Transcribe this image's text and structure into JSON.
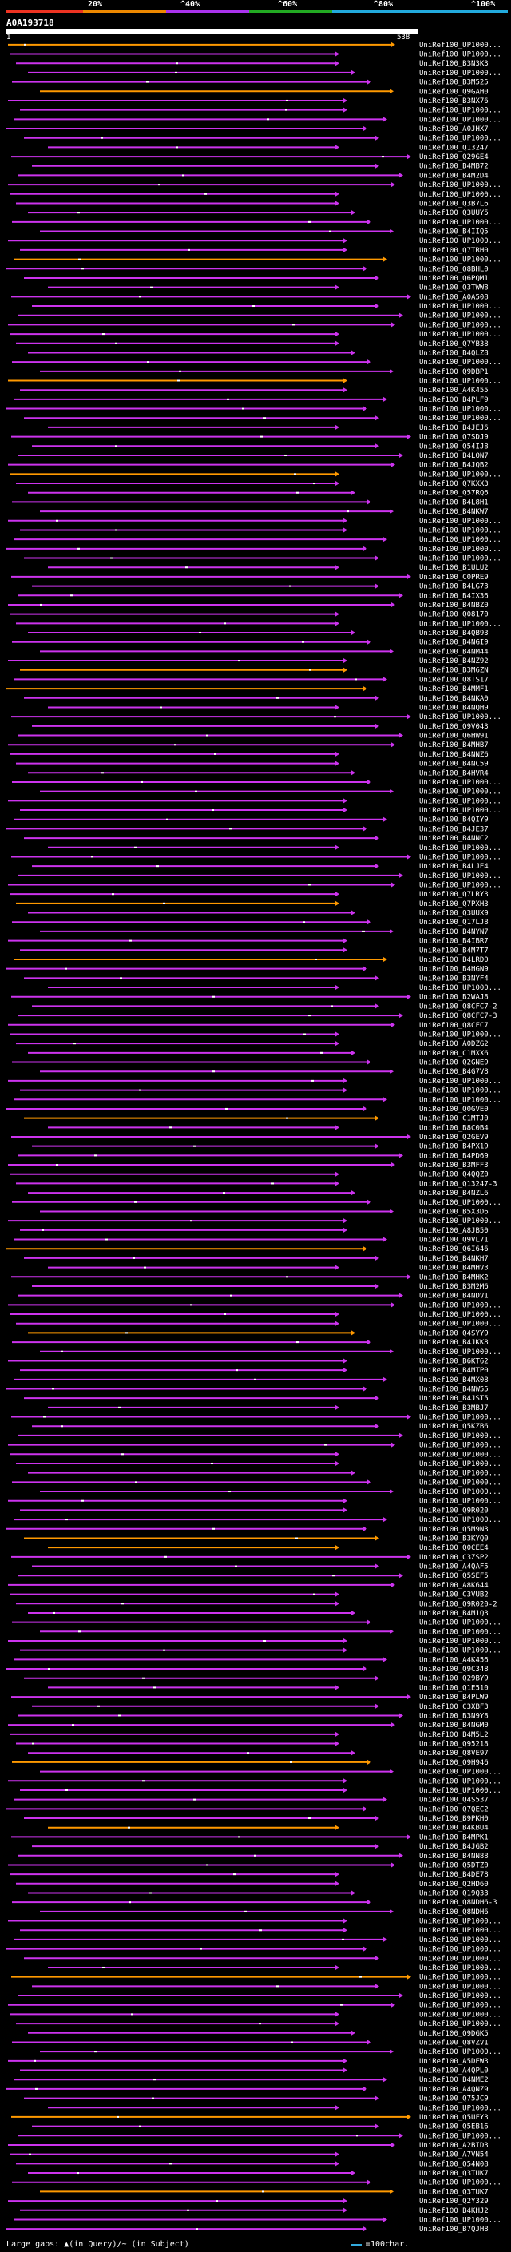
{
  "legend": {
    "labels": [
      "20%",
      "^40%",
      "^60%",
      "^80%",
      "^100%"
    ],
    "colors": [
      "#e32",
      "#e80",
      "#a3e",
      "#2a2",
      "#2ad"
    ]
  },
  "query": {
    "id": "A0A193718",
    "start": "1",
    "end": "538"
  },
  "colors": {
    "hit": "#c3e",
    "long_hit": "#f90",
    "background": "#000",
    "scale": "#3ad"
  },
  "hits": [
    "UniRef100_UP1000...",
    "UniRef100_UP1000...",
    "UniRef100_B3N3K3",
    "UniRef100_UP1000...",
    "UniRef100_B3M525",
    "UniRef100_Q9GAH0",
    "UniRef100_B3NX76",
    "UniRef100_UP1000...",
    "UniRef100_UP1000...",
    "UniRef100_A0JHX7",
    "UniRef100_UP1000...",
    "UniRef100_Q13247",
    "UniRef100_Q29GE4",
    "UniRef100_B4MB72",
    "UniRef100_B4M2D4",
    "UniRef100_UP1000...",
    "UniRef100_UP1000...",
    "UniRef100_Q3B7L6",
    "UniRef100_Q3UUY5",
    "UniRef100_UP1000...",
    "UniRef100_B4IIQ5",
    "UniRef100_UP1000...",
    "UniRef100_Q7TRH0",
    "UniRef100_UP1000...",
    "UniRef100_Q8BHL0",
    "UniRef100_Q6PQM1",
    "UniRef100_Q3TWW8",
    "UniRef100_A0A508",
    "UniRef100_UP1000...",
    "UniRef100_UP1000...",
    "UniRef100_UP1000...",
    "UniRef100_UP1000...",
    "UniRef100_Q7YB38",
    "UniRef100_B4QLZ8",
    "UniRef100_UP1000...",
    "UniRef100_Q9DBP1",
    "UniRef100_UP1000...",
    "UniRef100_A4K455",
    "UniRef100_B4PLF9",
    "UniRef100_UP1000...",
    "UniRef100_UP1000...",
    "UniRef100_B4JEJ6",
    "UniRef100_Q7SDJ9",
    "UniRef100_Q54IJ8",
    "UniRef100_B4LON7",
    "UniRef100_B4JQB2",
    "UniRef100_UP1000...",
    "UniRef100_Q7KXX3",
    "UniRef100_Q57RQ6",
    "UniRef100_B4L8H1",
    "UniRef100_B4NKW7",
    "UniRef100_UP1000...",
    "UniRef100_UP1000...",
    "UniRef100_UP1000...",
    "UniRef100_UP1000...",
    "UniRef100_UP1000...",
    "UniRef100_B1ULU2",
    "UniRef100_C0PRE9",
    "UniRef100_B4LG73",
    "UniRef100_B4IX36",
    "UniRef100_B4NBZ0",
    "UniRef100_Q08170",
    "UniRef100_UP1000...",
    "UniRef100_B4QB93",
    "UniRef100_B4NGI9",
    "UniRef100_B4NM44",
    "UniRef100_B4NZ92",
    "UniRef100_B3M6ZN",
    "UniRef100_Q8TS17",
    "UniRef100_B4MMF1",
    "UniRef100_B4NKA0",
    "UniRef100_B4NQH9",
    "UniRef100_UP1000...",
    "UniRef100_Q9V043",
    "UniRef100_Q6HW91",
    "UniRef100_B4MHB7",
    "UniRef100_B4NNZ6",
    "UniRef100_B4NC59",
    "UniRef100_B4HVR4",
    "UniRef100_UP1000...",
    "UniRef100_UP1000...",
    "UniRef100_UP1000...",
    "UniRef100_UP1000...",
    "UniRef100_B4QIY9",
    "UniRef100_B4JE37",
    "UniRef100_B4NNC2",
    "UniRef100_UP1000...",
    "UniRef100_UP1000...",
    "UniRef100_B4LJE4",
    "UniRef100_UP1000...",
    "UniRef100_UP1000...",
    "UniRef100_Q7LRY3",
    "UniRef100_Q7PXH3",
    "UniRef100_Q3UUX9",
    "UniRef100_Q17LJ8",
    "UniRef100_B4NYN7",
    "UniRef100_B4IBR7",
    "UniRef100_B4M7T7",
    "UniRef100_B4LRD0",
    "UniRef100_B4HGN9",
    "UniRef100_B3NYF4",
    "UniRef100_UP1000...",
    "UniRef100_B2WAJ8",
    "UniRef100_Q8CFC7-2",
    "UniRef100_Q8CFC7-3",
    "UniRef100_Q8CFC7",
    "UniRef100_UP1000...",
    "UniRef100_A0DZG2",
    "UniRef100_C1MXX6",
    "UniRef100_Q2GNE9",
    "UniRef100_B4G7V8",
    "UniRef100_UP1000...",
    "UniRef100_UP1000...",
    "UniRef100_UP1000...",
    "UniRef100_Q0GVE0",
    "UniRef100_C1MTJ0",
    "UniRef100_B8C0B4",
    "UniRef100_Q2GEV9",
    "UniRef100_B4PX19",
    "UniRef100_B4PD69",
    "UniRef100_B3MFF3",
    "UniRef100_Q4QQZ0",
    "UniRef100_Q13247-3",
    "UniRef100_B4NZL6",
    "UniRef100_UP1000...",
    "UniRef100_B5X3D6",
    "UniRef100_UP1000...",
    "UniRef100_A8JB50",
    "UniRef100_Q9VL71",
    "UniRef100_Q6I646",
    "UniRef100_B4NKH7",
    "UniRef100_B4MHV3",
    "UniRef100_B4MHK2",
    "UniRef100_B3M2M6",
    "UniRef100_B4NDV1",
    "UniRef100_UP1000...",
    "UniRef100_UP1000...",
    "UniRef100_UP1000...",
    "UniRef100_Q4SYY9",
    "UniRef100_B4JKK8",
    "UniRef100_UP1000...",
    "UniRef100_B6KT62",
    "UniRef100_B4MTP0",
    "UniRef100_B4MX08",
    "UniRef100_B4NW55",
    "UniRef100_B4JST5",
    "UniRef100_B3MBJ7",
    "UniRef100_UP1000...",
    "UniRef100_Q5KZB6",
    "UniRef100_UP1000...",
    "UniRef100_UP1000...",
    "UniRef100_UP1000...",
    "UniRef100_UP1000...",
    "UniRef100_UP1000...",
    "UniRef100_UP1000...",
    "UniRef100_UP1000...",
    "UniRef100_UP1000...",
    "UniRef100_Q9R020",
    "UniRef100_UP1000...",
    "UniRef100_Q5M9N3",
    "UniRef100_B3KYQ0",
    "UniRef100_Q0CEE4",
    "UniRef100_C3ZSP2",
    "UniRef100_A4QAF5",
    "UniRef100_Q5SEF5",
    "UniRef100_A8K644",
    "UniRef100_C3VUB2",
    "UniRef100_Q9R020-2",
    "UniRef100_B4M1Q3",
    "UniRef100_UP1000...",
    "UniRef100_UP1000...",
    "UniRef100_UP1000...",
    "UniRef100_UP1000...",
    "UniRef100_A4K456",
    "UniRef100_Q9C348",
    "UniRef100_Q29BY9",
    "UniRef100_Q1E510",
    "UniRef100_B4PLW9",
    "UniRef100_C3XBF3",
    "UniRef100_B3N9Y8",
    "UniRef100_B4NGM0",
    "UniRef100_B4M5L2",
    "UniRef100_Q95218",
    "UniRef100_Q8VE97",
    "UniRef100_Q9H946",
    "UniRef100_UP1000...",
    "UniRef100_UP1000...",
    "UniRef100_UP1000...",
    "UniRef100_Q4S537",
    "UniRef100_Q7QEC2",
    "UniRef100_B9PKH0",
    "UniRef100_B4KBU4",
    "UniRef100_B4MPK1",
    "UniRef100_B4JGB2",
    "UniRef100_B4NN88",
    "UniRef100_Q5DTZ0",
    "UniRef100_B4DE78",
    "UniRef100_Q2HD60",
    "UniRef100_Q19Q33",
    "UniRef100_Q8NDH6-3",
    "UniRef100_Q8NDH6",
    "UniRef100_UP1000...",
    "UniRef100_UP1000...",
    "UniRef100_UP1000...",
    "UniRef100_UP1000...",
    "UniRef100_UP1000...",
    "UniRef100_UP1000...",
    "UniRef100_UP1000...",
    "UniRef100_UP1000...",
    "UniRef100_UP1000...",
    "UniRef100_UP1000...",
    "UniRef100_UP1000...",
    "UniRef100_UP1000...",
    "UniRef100_Q9DGK5",
    "UniRef100_Q8VZV1",
    "UniRef100_UP1000...",
    "UniRef100_A5DEW3",
    "UniRef100_A4QPL0",
    "UniRef100_B4NME2",
    "UniRef100_A4QNZ9",
    "UniRef100_Q75JC9",
    "UniRef100_UP1000...",
    "UniRef100_Q5UFY3",
    "UniRef100_Q5EB16",
    "UniRef100_UP1000...",
    "UniRef100_A2BID3",
    "UniRef100_A7VN54",
    "UniRef100_Q54N08",
    "UniRef100_Q3TUK7",
    "UniRef100_UP1000...",
    "UniRef100_Q3TUK7",
    "UniRef100_Q2Y329",
    "UniRef100_B4KHJ2",
    "UniRef100_UP1000...",
    "UniRef100_B7QJH8"
  ],
  "footer": {
    "gaps_text": "Large gaps: ▲(in Query)/~ (in Subject)",
    "scale_text": "=100char."
  }
}
